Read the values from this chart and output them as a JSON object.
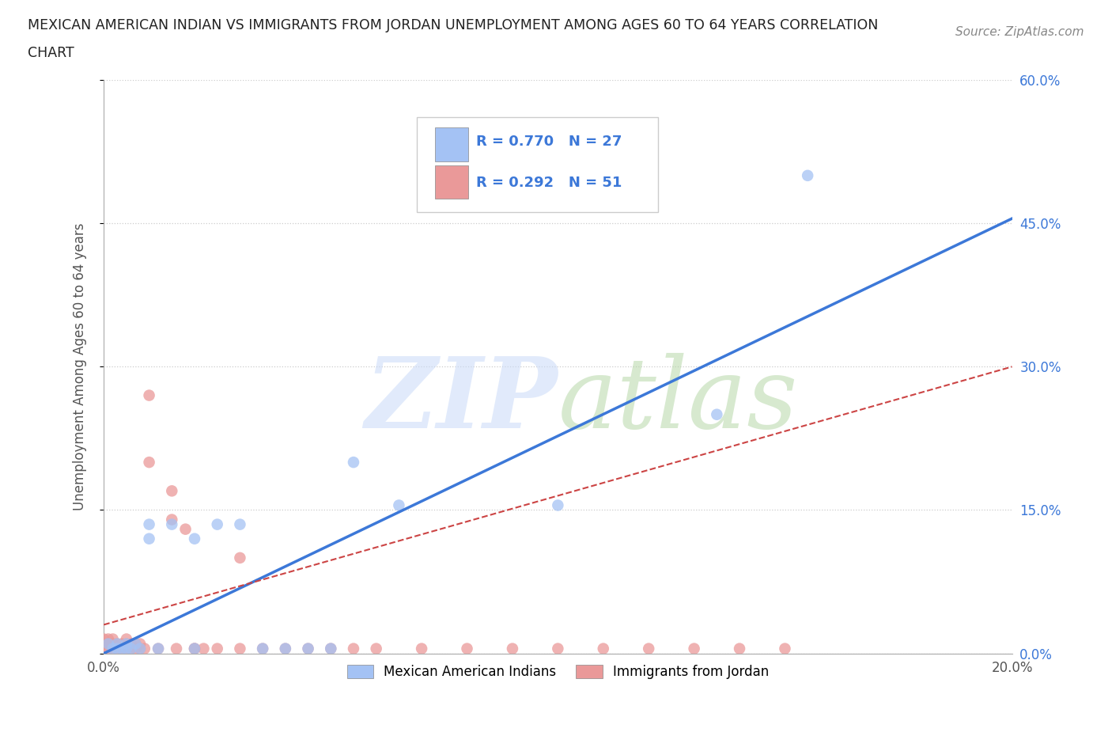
{
  "title_line1": "MEXICAN AMERICAN INDIAN VS IMMIGRANTS FROM JORDAN UNEMPLOYMENT AMONG AGES 60 TO 64 YEARS CORRELATION",
  "title_line2": "CHART",
  "source_text": "Source: ZipAtlas.com",
  "ylabel": "Unemployment Among Ages 60 to 64 years",
  "xlim": [
    0.0,
    0.2
  ],
  "ylim": [
    0.0,
    0.6
  ],
  "ytick_labels": [
    "0.0%",
    "15.0%",
    "30.0%",
    "45.0%",
    "60.0%"
  ],
  "ytick_vals": [
    0.0,
    0.15,
    0.3,
    0.45,
    0.6
  ],
  "xtick_vals": [
    0.0,
    0.05,
    0.1,
    0.15,
    0.2
  ],
  "blue_color": "#a4c2f4",
  "pink_color": "#ea9999",
  "line_blue": "#3c78d8",
  "line_pink": "#cc4444",
  "blue_scatter_x": [
    0.001,
    0.002,
    0.003,
    0.003,
    0.004,
    0.005,
    0.005,
    0.006,
    0.007,
    0.008,
    0.01,
    0.01,
    0.012,
    0.015,
    0.02,
    0.02,
    0.025,
    0.03,
    0.035,
    0.04,
    0.045,
    0.05,
    0.055,
    0.065,
    0.1,
    0.135,
    0.155
  ],
  "blue_scatter_y": [
    0.01,
    0.005,
    0.005,
    0.01,
    0.005,
    0.005,
    0.01,
    0.005,
    0.01,
    0.005,
    0.12,
    0.135,
    0.005,
    0.135,
    0.005,
    0.12,
    0.135,
    0.135,
    0.005,
    0.005,
    0.005,
    0.005,
    0.2,
    0.155,
    0.155,
    0.25,
    0.5
  ],
  "pink_scatter_x": [
    0.0,
    0.0,
    0.0,
    0.001,
    0.001,
    0.001,
    0.002,
    0.002,
    0.002,
    0.003,
    0.003,
    0.004,
    0.004,
    0.005,
    0.005,
    0.005,
    0.006,
    0.006,
    0.007,
    0.007,
    0.008,
    0.008,
    0.009,
    0.01,
    0.01,
    0.012,
    0.015,
    0.015,
    0.016,
    0.018,
    0.02,
    0.02,
    0.022,
    0.025,
    0.03,
    0.03,
    0.035,
    0.04,
    0.045,
    0.05,
    0.055,
    0.06,
    0.07,
    0.08,
    0.09,
    0.1,
    0.11,
    0.12,
    0.13,
    0.14,
    0.15
  ],
  "pink_scatter_y": [
    0.005,
    0.01,
    0.015,
    0.005,
    0.01,
    0.015,
    0.005,
    0.01,
    0.015,
    0.005,
    0.01,
    0.005,
    0.01,
    0.005,
    0.01,
    0.015,
    0.005,
    0.01,
    0.005,
    0.01,
    0.005,
    0.01,
    0.005,
    0.2,
    0.27,
    0.005,
    0.14,
    0.17,
    0.005,
    0.13,
    0.005,
    0.005,
    0.005,
    0.005,
    0.005,
    0.1,
    0.005,
    0.005,
    0.005,
    0.005,
    0.005,
    0.005,
    0.005,
    0.005,
    0.005,
    0.005,
    0.005,
    0.005,
    0.005,
    0.005,
    0.005
  ],
  "blue_line_x0": 0.0,
  "blue_line_y0": 0.0,
  "blue_line_x1": 0.2,
  "blue_line_y1": 0.455,
  "pink_line_x0": 0.0,
  "pink_line_y0": 0.03,
  "pink_line_x1": 0.2,
  "pink_line_y1": 0.3,
  "background_color": "#ffffff",
  "grid_color": "#cccccc",
  "watermark_zip_color": "#c9daf8",
  "watermark_atlas_color": "#b6d7a8"
}
